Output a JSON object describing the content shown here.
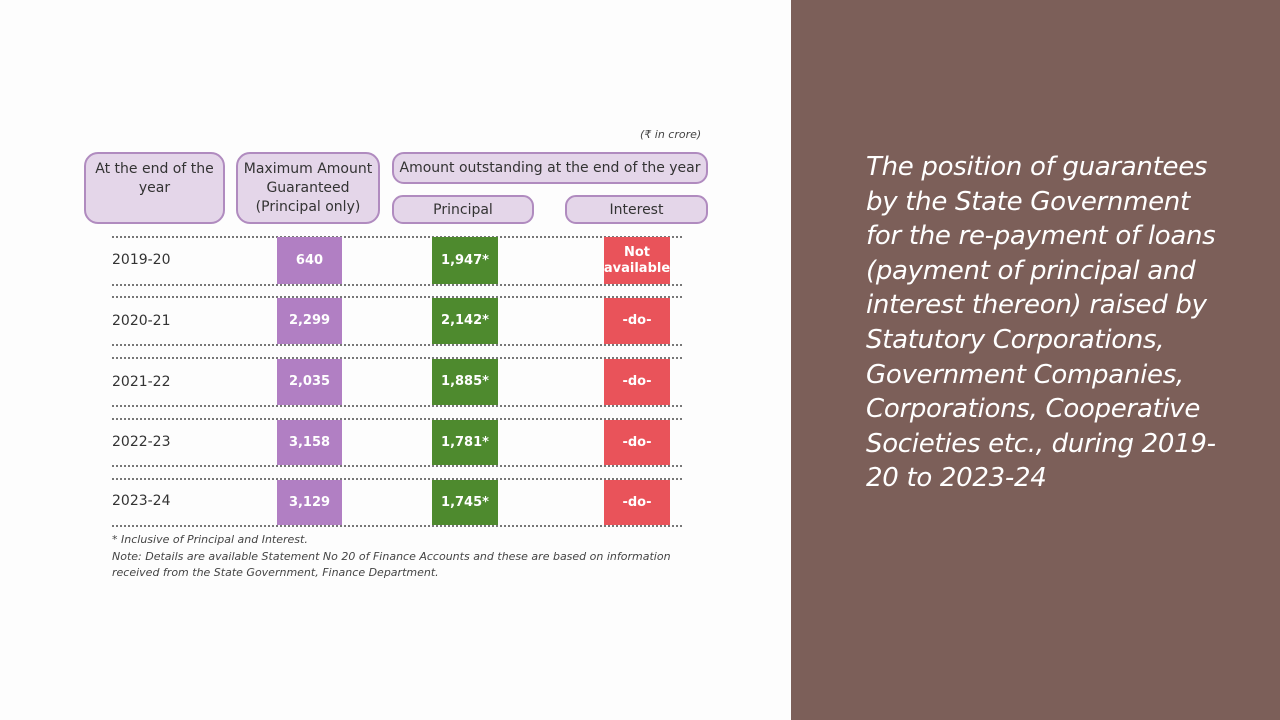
{
  "unit_note": "(₹ in crore)",
  "headers": {
    "year": "At the end of the year",
    "max_amount": "Maximum Amount Guaranteed (Principal only)",
    "outstanding": "Amount outstanding at the end of the year",
    "principal": "Principal",
    "interest": "Interest"
  },
  "rows": [
    {
      "year": "2019-20",
      "max": "640",
      "principal": "1,947*",
      "interest": "Not available"
    },
    {
      "year": "2020-21",
      "max": "2,299",
      "principal": "2,142*",
      "interest": "-do-"
    },
    {
      "year": "2021-22",
      "max": "2,035",
      "principal": "1,885*",
      "interest": "-do-"
    },
    {
      "year": "2022-23",
      "max": "3,158",
      "principal": "1,781*",
      "interest": "-do-"
    },
    {
      "year": "2023-24",
      "max": "3,129",
      "principal": "1,745*",
      "interest": "-do-"
    }
  ],
  "footnotes": {
    "star": "* Inclusive of Principal and Interest.",
    "note": "Note: Details are available Statement No 20 of Finance Accounts and these are based on information received from the State Government, Finance Department."
  },
  "side_text": "The position of guarantees by the State Government for the re-payment of loans (payment of principal and interest thereon) raised by Statutory Corporations, Government Companies, Corporations, Cooperative Societies etc., during 2019-20 to 2023-24",
  "colors": {
    "side_panel": "#7c5f59",
    "max_cell": "#b17fc3",
    "principal_cell": "#4e8a2e",
    "interest_cell": "#e9535a",
    "header_fill": "#e4d6e9",
    "header_border": "#b08bbf"
  }
}
